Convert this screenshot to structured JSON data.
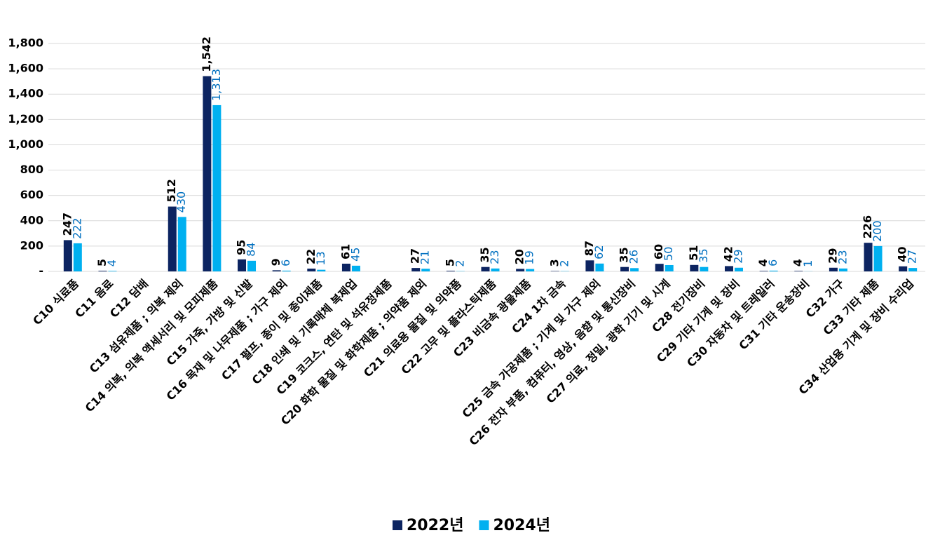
{
  "chart_data": {
    "type": "bar",
    "categories": [
      "C10 식료품",
      "C11 음료",
      "C12 담배",
      "C13 섬유제품 ; 의복 제외",
      "C14 의복, 의복 액세서리 및 모피제품",
      "C15 가죽, 가방 및 신발",
      "C16 목재 및 나무제품 ; 가구 제외",
      "C17 펄프, 종이 및 종이제품",
      "C18 인쇄 및 기록매체 복제업",
      "C19 코크스, 연탄 및 석유정제품",
      "C20 화학 물질 및 화학제품 ; 의약품 제외",
      "C21 의료용 물질 및 의약품",
      "C22 고무 및 플라스틱제품",
      "C23 비금속 광물제품",
      "C24 1차 금속",
      "C25 금속 가공제품 ; 기계 및 가구 제외",
      "C26 전자 부품, 컴퓨터, 영상, 음향 및 통신장비",
      "C27 의료, 정밀, 광학 기기 및 시계",
      "C28 전기장비",
      "C29 기타 기계 및 장비",
      "C30 자동차 및 트레일러",
      "C31 기타 운송장비",
      "C32 가구",
      "C33 기타 제품",
      "C34 산업용 기계 및 장비 수리업"
    ],
    "series": [
      {
        "name": "2022년",
        "color": "#0c2461",
        "values": [
          247,
          5,
          null,
          512,
          1542,
          95,
          9,
          22,
          61,
          null,
          27,
          5,
          35,
          20,
          3,
          87,
          35,
          60,
          51,
          42,
          4,
          4,
          29,
          226,
          40
        ],
        "value_labels": [
          "247",
          "5",
          null,
          "512",
          "1,542",
          "95",
          "9",
          "22",
          "61",
          null,
          "27",
          "5",
          "35",
          "20",
          "3",
          "87",
          "35",
          "60",
          "51",
          "42",
          "4",
          "4",
          "29",
          "226",
          "40"
        ]
      },
      {
        "name": "2024년",
        "color": "#00b0f0",
        "values": [
          222,
          4,
          null,
          430,
          1313,
          84,
          6,
          13,
          45,
          null,
          21,
          2,
          23,
          19,
          2,
          62,
          26,
          50,
          35,
          29,
          6,
          1,
          23,
          200,
          27
        ],
        "value_labels": [
          "222",
          "4",
          null,
          "430",
          "1,313",
          "84",
          "6",
          "13",
          "45",
          null,
          "21",
          "2",
          "23",
          "19",
          "2",
          "62",
          "26",
          "50",
          "35",
          "29",
          "6",
          "1",
          "23",
          "200",
          "27"
        ]
      }
    ],
    "ylim": [
      0,
      1800
    ],
    "yticks": [
      {
        "value": 0,
        "label": "-"
      },
      200,
      400,
      600,
      800,
      {
        "value": 1000,
        "label": "1,000"
      },
      {
        "value": 1200,
        "label": "1,200"
      },
      {
        "value": 1400,
        "label": "1,400"
      },
      {
        "value": 1600,
        "label": "1,600"
      },
      {
        "value": 1800,
        "label": "1,800"
      }
    ],
    "grid": true,
    "legend": "bottom"
  }
}
